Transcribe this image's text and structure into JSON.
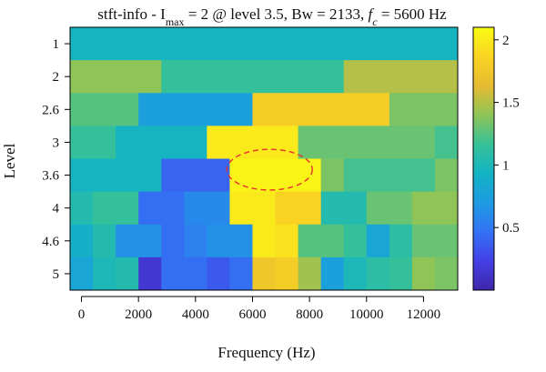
{
  "chart_data": {
    "type": "heatmap",
    "title": {
      "prefix": "stft-info - I",
      "sub": "max",
      "middle": " = 2 @ level 3.5, Bw = 2133, ",
      "fc_italic": "f",
      "fc_sub": "c",
      "suffix": " = 5600 Hz"
    },
    "xlabel": "Frequency (Hz)",
    "ylabel": "Level",
    "xlim": [
      -400,
      13200
    ],
    "xticks": [
      0,
      2000,
      4000,
      6000,
      8000,
      10000,
      12000
    ],
    "levels": [
      "1",
      "2",
      "2.6",
      "3",
      "3.6",
      "4",
      "4.6",
      "5"
    ],
    "zlim": [
      0,
      2.1
    ],
    "colorbar_ticks": [
      0.5,
      1,
      1.5,
      2
    ],
    "colorbar_tick_labels": [
      "0.5",
      "1",
      "1.5",
      "2"
    ],
    "colors": {
      "colormap": [
        "#3e26a8",
        "#4440e6",
        "#3372f4",
        "#1e9be2",
        "#13b3c4",
        "#37c197",
        "#8fc457",
        "#e6bb31",
        "#fbd423",
        "#f9fb15"
      ],
      "highlight_ellipse": "#e6322f"
    },
    "highlight": {
      "level": 3.5,
      "frequency": 6600,
      "freq_halfwidth": 1500
    },
    "rows": [
      {
        "level": "1",
        "segments": [
          {
            "x0": -400,
            "x1": 13200,
            "value": 0.95
          }
        ]
      },
      {
        "level": "2",
        "segments": [
          {
            "x0": -400,
            "x1": 2800,
            "value": 1.4
          },
          {
            "x0": 2800,
            "x1": 9200,
            "value": 1.15
          },
          {
            "x0": 9200,
            "x1": 13200,
            "value": 1.5
          }
        ]
      },
      {
        "level": "2.6",
        "segments": [
          {
            "x0": -400,
            "x1": 2000,
            "value": 1.25
          },
          {
            "x0": 2000,
            "x1": 6000,
            "value": 0.75
          },
          {
            "x0": 6000,
            "x1": 10800,
            "value": 1.8
          },
          {
            "x0": 10800,
            "x1": 13200,
            "value": 1.35
          }
        ]
      },
      {
        "level": "3",
        "segments": [
          {
            "x0": -400,
            "x1": 1200,
            "value": 1.15
          },
          {
            "x0": 1200,
            "x1": 4400,
            "value": 0.95
          },
          {
            "x0": 4400,
            "x1": 7600,
            "value": 2.0
          },
          {
            "x0": 7600,
            "x1": 12400,
            "value": 1.3
          },
          {
            "x0": 12400,
            "x1": 13200,
            "value": 1.2
          }
        ]
      },
      {
        "level": "3.6",
        "segments": [
          {
            "x0": -400,
            "x1": 2800,
            "value": 0.95
          },
          {
            "x0": 2800,
            "x1": 5200,
            "value": 0.4
          },
          {
            "x0": 5200,
            "x1": 8400,
            "value": 2.05
          },
          {
            "x0": 8400,
            "x1": 9200,
            "value": 1.35
          },
          {
            "x0": 9200,
            "x1": 12400,
            "value": 1.2
          },
          {
            "x0": 12400,
            "x1": 13200,
            "value": 1.35
          }
        ]
      },
      {
        "level": "4",
        "segments": [
          {
            "x0": -400,
            "x1": 400,
            "value": 1.05
          },
          {
            "x0": 400,
            "x1": 2000,
            "value": 1.15
          },
          {
            "x0": 2000,
            "x1": 3600,
            "value": 0.45
          },
          {
            "x0": 3600,
            "x1": 5200,
            "value": 0.6
          },
          {
            "x0": 5200,
            "x1": 6800,
            "value": 2.0
          },
          {
            "x0": 6800,
            "x1": 8400,
            "value": 1.85
          },
          {
            "x0": 8400,
            "x1": 10000,
            "value": 1.05
          },
          {
            "x0": 10000,
            "x1": 11600,
            "value": 1.3
          },
          {
            "x0": 11600,
            "x1": 13200,
            "value": 1.4
          }
        ]
      },
      {
        "level": "4.6",
        "segments": [
          {
            "x0": -400,
            "x1": 400,
            "value": 0.9
          },
          {
            "x0": 400,
            "x1": 1200,
            "value": 1.05
          },
          {
            "x0": 1200,
            "x1": 2800,
            "value": 0.65
          },
          {
            "x0": 2800,
            "x1": 3600,
            "value": 0.45
          },
          {
            "x0": 3600,
            "x1": 4400,
            "value": 0.55
          },
          {
            "x0": 4400,
            "x1": 6000,
            "value": 0.65
          },
          {
            "x0": 6000,
            "x1": 6800,
            "value": 2.0
          },
          {
            "x0": 6800,
            "x1": 7600,
            "value": 1.95
          },
          {
            "x0": 7600,
            "x1": 9200,
            "value": 1.25
          },
          {
            "x0": 9200,
            "x1": 10000,
            "value": 1.15
          },
          {
            "x0": 10000,
            "x1": 10800,
            "value": 0.8
          },
          {
            "x0": 10800,
            "x1": 11600,
            "value": 1.1
          },
          {
            "x0": 11600,
            "x1": 13200,
            "value": 1.3
          }
        ]
      },
      {
        "level": "5",
        "segments": [
          {
            "x0": -400,
            "x1": 400,
            "value": 0.8
          },
          {
            "x0": 400,
            "x1": 1200,
            "value": 1.0
          },
          {
            "x0": 1200,
            "x1": 2000,
            "value": 1.05
          },
          {
            "x0": 2000,
            "x1": 2800,
            "value": 0.15
          },
          {
            "x0": 2800,
            "x1": 4400,
            "value": 0.45
          },
          {
            "x0": 4400,
            "x1": 5200,
            "value": 0.35
          },
          {
            "x0": 5200,
            "x1": 6000,
            "value": 0.45
          },
          {
            "x0": 6000,
            "x1": 6800,
            "value": 1.75
          },
          {
            "x0": 6800,
            "x1": 7600,
            "value": 1.8
          },
          {
            "x0": 7600,
            "x1": 8400,
            "value": 1.45
          },
          {
            "x0": 8400,
            "x1": 9200,
            "value": 0.75
          },
          {
            "x0": 9200,
            "x1": 10000,
            "value": 1.0
          },
          {
            "x0": 10000,
            "x1": 10800,
            "value": 1.1
          },
          {
            "x0": 10800,
            "x1": 11600,
            "value": 1.15
          },
          {
            "x0": 11600,
            "x1": 12400,
            "value": 1.4
          },
          {
            "x0": 12400,
            "x1": 13200,
            "value": 1.35
          }
        ]
      }
    ]
  }
}
